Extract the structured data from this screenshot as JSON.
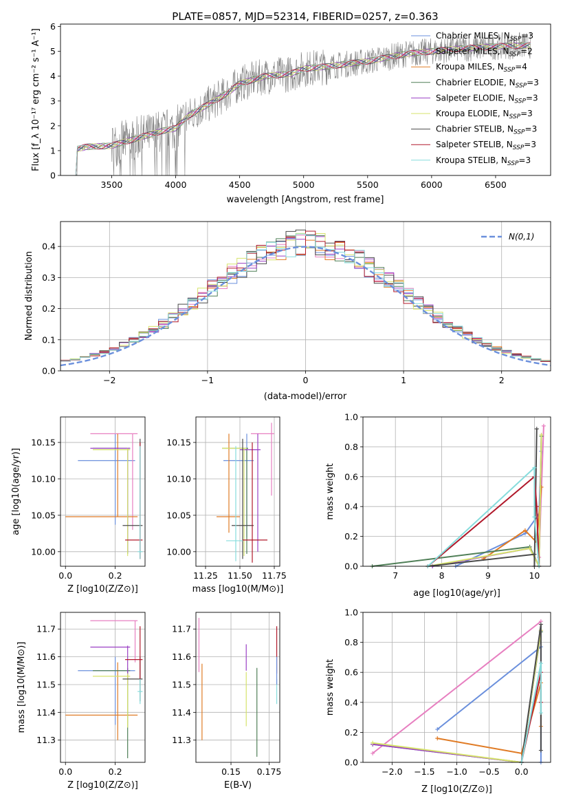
{
  "colors": {
    "c_miles": "#6a8fdc",
    "s_miles": "#e77fc0",
    "k_miles": "#e07b25",
    "c_elodie": "#4f7f57",
    "s_elodie": "#9a3fc4",
    "k_elodie": "#d6e36a",
    "c_stelib": "#4a4a4a",
    "s_stelib": "#b0182a",
    "k_stelib": "#86dcdc",
    "data": "#808080",
    "normal": "#6a8fdc"
  },
  "chart_data": [
    {
      "type": "line",
      "title": "PLATE=0857, MJD=52314, FIBERID=0257, z=0.363",
      "xlabel": "wavelength [Angstrom, rest frame]",
      "ylabel": "Flux [f_λ 10⁻¹⁷ erg cm⁻² s⁻¹ A⁻¹]",
      "xlim": [
        3100,
        6930
      ],
      "ylim": [
        0,
        6.1
      ],
      "xticks": [
        3500,
        4000,
        4500,
        5000,
        5500,
        6000,
        6500
      ],
      "yticks": [
        0,
        1,
        2,
        3,
        4,
        5,
        6
      ],
      "legend_position": "top-right",
      "series": [
        {
          "name": "Chabrier MILES, N_SSP=3",
          "key": "c_miles",
          "n": "3",
          "lib": "Chabrier MILES"
        },
        {
          "name": "Salpeter MILES, N_SSP=2",
          "key": "s_miles",
          "n": "2",
          "lib": "Salpeter MILES"
        },
        {
          "name": "Kroupa MILES, N_SSP=4",
          "key": "k_miles",
          "n": "4",
          "lib": "Kroupa MILES"
        },
        {
          "name": "Chabrier ELODIE, N_SSP=3",
          "key": "c_elodie",
          "n": "3",
          "lib": "Chabrier ELODIE"
        },
        {
          "name": "Salpeter ELODIE, N_SSP=3",
          "key": "s_elodie",
          "n": "3",
          "lib": "Salpeter ELODIE"
        },
        {
          "name": "Kroupa ELODIE, N_SSP=3",
          "key": "k_elodie",
          "n": "3",
          "lib": "Kroupa ELODIE"
        },
        {
          "name": "Chabrier STELIB, N_SSP=3",
          "key": "c_stelib",
          "n": "3",
          "lib": "Chabrier STELIB"
        },
        {
          "name": "Salpeter STELIB, N_SSP=3",
          "key": "s_stelib",
          "n": "3",
          "lib": "Salpeter STELIB"
        },
        {
          "name": "Kroupa STELIB, N_SSP=3",
          "key": "k_stelib",
          "n": "3",
          "lib": "Kroupa STELIB"
        }
      ],
      "continuum": {
        "x": [
          3220,
          3300,
          3500,
          3700,
          3900,
          4000,
          4100,
          4200,
          4300,
          4400,
          4500,
          4700,
          4900,
          5000,
          5200,
          5500,
          5800,
          6000,
          6200,
          6500,
          6800
        ],
        "y": [
          1.05,
          1.15,
          1.2,
          1.5,
          1.8,
          1.9,
          2.4,
          2.7,
          3.0,
          3.3,
          3.7,
          4.0,
          4.1,
          4.3,
          4.4,
          4.6,
          4.9,
          5.0,
          5.1,
          5.2,
          5.25
        ]
      }
    },
    {
      "type": "histogram",
      "xlabel": "(data-model)/error",
      "ylabel": "Normed distribution",
      "xlim": [
        -2.5,
        2.5
      ],
      "ylim": [
        0,
        0.48
      ],
      "xticks": [
        -2,
        -1,
        0,
        1,
        2
      ],
      "yticks": [
        0.0,
        0.1,
        0.2,
        0.3,
        0.4
      ],
      "grid": true,
      "legend_position": "top-right",
      "legend_label": "N(0,1)",
      "bin_width": 0.1,
      "overlay": {
        "name": "N(0,1)",
        "type": "normal-pdf",
        "mean": 0,
        "sd": 1
      }
    },
    {
      "type": "scatter-errorbars",
      "xlabel": "Z [log10(Z/Z⊙)]",
      "ylabel": "age [log10(age/yr)]",
      "xlim": [
        -0.02,
        0.32
      ],
      "ylim": [
        9.98,
        10.185
      ],
      "xticks": [
        0.0,
        0.2
      ],
      "yticks": [
        10.0,
        10.05,
        10.1,
        10.15
      ],
      "grid": true,
      "points": [
        {
          "key": "c_miles",
          "x": 0.2,
          "y": 10.125,
          "xlo": 0.05,
          "xhi": 0.28,
          "ylo": 10.037,
          "yhi": 10.162
        },
        {
          "key": "s_miles",
          "x": 0.27,
          "y": 10.162,
          "xlo": 0.1,
          "xhi": 0.29,
          "ylo": 10.03,
          "yhi": 10.162
        },
        {
          "key": "k_miles",
          "x": 0.21,
          "y": 10.048,
          "xlo": 0.0,
          "xhi": 0.29,
          "ylo": 10.048,
          "yhi": 10.162
        },
        {
          "key": "c_elodie",
          "x": 0.25,
          "y": 10.142,
          "xlo": 0.11,
          "xhi": 0.26,
          "ylo": 9.997,
          "yhi": 10.142
        },
        {
          "key": "s_elodie",
          "x": 0.25,
          "y": 10.142,
          "xlo": 0.1,
          "xhi": 0.26,
          "ylo": 10.0,
          "yhi": 10.142
        },
        {
          "key": "k_elodie",
          "x": 0.25,
          "y": 10.14,
          "xlo": 0.11,
          "xhi": 0.26,
          "ylo": 9.994,
          "yhi": 10.142
        },
        {
          "key": "c_stelib",
          "x": 0.3,
          "y": 10.036,
          "xlo": 0.23,
          "xhi": 0.31,
          "ylo": 9.99,
          "yhi": 10.155
        },
        {
          "key": "s_stelib",
          "x": 0.3,
          "y": 10.016,
          "xlo": 0.24,
          "xhi": 0.31,
          "ylo": 9.99,
          "yhi": 10.15
        },
        {
          "key": "k_stelib",
          "x": 0.3,
          "y": 10.0,
          "xlo": 0.29,
          "xhi": 0.31,
          "ylo": 9.99,
          "yhi": 10.145
        }
      ]
    },
    {
      "type": "scatter-errorbars",
      "xlabel": "mass [log10(M/M⊙)]",
      "ylabel": "",
      "xlim": [
        11.18,
        11.79
      ],
      "ylim": [
        9.98,
        10.185
      ],
      "xticks": [
        11.25,
        11.5,
        11.75
      ],
      "yticks": [
        10.0,
        10.05,
        10.1,
        10.15
      ],
      "grid": true,
      "points": [
        {
          "key": "c_miles",
          "x": 11.55,
          "y": 10.125,
          "xlo": 11.38,
          "xhi": 11.6,
          "ylo": 10.02,
          "yhi": 10.162
        },
        {
          "key": "s_miles",
          "x": 11.73,
          "y": 10.162,
          "xlo": 11.58,
          "xhi": 11.75,
          "ylo": 10.077,
          "yhi": 10.177
        },
        {
          "key": "k_miles",
          "x": 11.42,
          "y": 10.048,
          "xlo": 11.33,
          "xhi": 11.5,
          "ylo": 10.026,
          "yhi": 10.162
        },
        {
          "key": "c_elodie",
          "x": 11.55,
          "y": 10.142,
          "xlo": 11.37,
          "xhi": 11.56,
          "ylo": 9.997,
          "yhi": 10.142
        },
        {
          "key": "s_elodie",
          "x": 11.63,
          "y": 10.14,
          "xlo": 11.5,
          "xhi": 11.65,
          "ylo": 10.0,
          "yhi": 10.162
        },
        {
          "key": "k_elodie",
          "x": 11.53,
          "y": 10.142,
          "xlo": 11.37,
          "xhi": 11.55,
          "ylo": 9.994,
          "yhi": 10.142
        },
        {
          "key": "c_stelib",
          "x": 11.52,
          "y": 10.036,
          "xlo": 11.44,
          "xhi": 11.6,
          "ylo": 9.99,
          "yhi": 10.155
        },
        {
          "key": "s_stelib",
          "x": 11.59,
          "y": 10.016,
          "xlo": 11.52,
          "xhi": 11.7,
          "ylo": 9.985,
          "yhi": 10.15
        },
        {
          "key": "k_stelib",
          "x": 11.47,
          "y": 10.015,
          "xlo": 11.4,
          "xhi": 11.52,
          "ylo": 9.987,
          "yhi": 10.145
        }
      ]
    },
    {
      "type": "line",
      "xlabel": "age  [log10(age/yr)]",
      "ylabel": "mass weight",
      "xlim": [
        6.3,
        10.35
      ],
      "ylim": [
        0,
        1.0
      ],
      "xticks": [
        7,
        8,
        9,
        10
      ],
      "yticks": [
        0.0,
        0.2,
        0.4,
        0.6,
        0.8,
        1.0
      ],
      "grid": true,
      "series": [
        {
          "key": "c_miles",
          "x": [
            8.3,
            9.8,
            10.1,
            10.15
          ],
          "y": [
            0.0,
            0.22,
            0.35,
            0.77
          ]
        },
        {
          "key": "s_miles",
          "x": [
            10.1,
            10.2
          ],
          "y": [
            0.06,
            0.94
          ]
        },
        {
          "key": "k_miles",
          "x": [
            8.9,
            9.8,
            10.05,
            10.15
          ],
          "y": [
            0.05,
            0.24,
            0.16,
            0.53
          ]
        },
        {
          "key": "c_elodie",
          "x": [
            6.5,
            9.9,
            10.1,
            10.15
          ],
          "y": [
            0.0,
            0.13,
            0.0,
            0.87
          ]
        },
        {
          "key": "s_elodie",
          "x": [
            7.8,
            9.9,
            10.1,
            10.15
          ],
          "y": [
            0.0,
            0.12,
            0.0,
            0.88
          ]
        },
        {
          "key": "k_elodie",
          "x": [
            7.7,
            9.9,
            10.1,
            10.15
          ],
          "y": [
            0.0,
            0.12,
            0.0,
            0.88
          ]
        },
        {
          "key": "c_stelib",
          "x": [
            7.7,
            10.0,
            10.0,
            10.05
          ],
          "y": [
            0.0,
            0.08,
            0.0,
            0.92
          ]
        },
        {
          "key": "s_stelib",
          "x": [
            7.7,
            10.0,
            10.05,
            10.1
          ],
          "y": [
            0.0,
            0.6,
            0.4,
            0.0
          ]
        },
        {
          "key": "k_stelib",
          "x": [
            7.7,
            10.0,
            10.0,
            10.1
          ],
          "y": [
            0.0,
            0.66,
            0.33,
            0.0
          ]
        }
      ]
    },
    {
      "type": "scatter-errorbars",
      "xlabel": "Z [log10(Z/Z⊙)]",
      "ylabel": "mass [log10(M/M⊙)]",
      "xlim": [
        -0.02,
        0.32
      ],
      "ylim": [
        11.22,
        11.76
      ],
      "xticks": [
        0.0,
        0.2
      ],
      "yticks": [
        11.3,
        11.4,
        11.5,
        11.6,
        11.7
      ],
      "grid": true,
      "points": [
        {
          "key": "c_miles",
          "x": 0.2,
          "y": 11.55,
          "xlo": 0.05,
          "xhi": 0.28,
          "ylo": 11.355,
          "yhi": 11.6
        },
        {
          "key": "s_miles",
          "x": 0.28,
          "y": 11.73,
          "xlo": 0.1,
          "xhi": 0.29,
          "ylo": 11.58,
          "yhi": 11.73
        },
        {
          "key": "k_miles",
          "x": 0.21,
          "y": 11.39,
          "xlo": 0.0,
          "xhi": 0.29,
          "ylo": 11.3,
          "yhi": 11.58
        },
        {
          "key": "c_elodie",
          "x": 0.25,
          "y": 11.55,
          "xlo": 0.11,
          "xhi": 0.26,
          "ylo": 11.235,
          "yhi": 11.56
        },
        {
          "key": "s_elodie",
          "x": 0.25,
          "y": 11.635,
          "xlo": 0.1,
          "xhi": 0.26,
          "ylo": 11.5,
          "yhi": 11.64
        },
        {
          "key": "k_elodie",
          "x": 0.25,
          "y": 11.53,
          "xlo": 0.11,
          "xhi": 0.26,
          "ylo": 11.345,
          "yhi": 11.54
        },
        {
          "key": "c_stelib",
          "x": 0.3,
          "y": 11.52,
          "xlo": 0.23,
          "xhi": 0.31,
          "ylo": 11.44,
          "yhi": 11.6
        },
        {
          "key": "s_stelib",
          "x": 0.3,
          "y": 11.59,
          "xlo": 0.24,
          "xhi": 0.31,
          "ylo": 11.52,
          "yhi": 11.71
        },
        {
          "key": "k_stelib",
          "x": 0.3,
          "y": 11.475,
          "xlo": 0.29,
          "xhi": 0.31,
          "ylo": 11.43,
          "yhi": 11.52
        }
      ]
    },
    {
      "type": "scatter-errorbars",
      "xlabel": "E(B-V)",
      "ylabel": "",
      "xlim": [
        0.127,
        0.182
      ],
      "ylim": [
        11.22,
        11.76
      ],
      "xticks": [
        0.15,
        0.175
      ],
      "yticks": [
        11.3,
        11.4,
        11.5,
        11.6,
        11.7
      ],
      "grid": true,
      "points": [
        {
          "key": "s_miles",
          "x": 0.129,
          "y": 11.64,
          "ylo": 11.545,
          "yhi": 11.74
        },
        {
          "key": "k_miles",
          "x": 0.131,
          "y": 11.43,
          "ylo": 11.3,
          "yhi": 11.575
        },
        {
          "key": "s_elodie",
          "x": 0.16,
          "y": 11.6,
          "ylo": 11.55,
          "yhi": 11.645
        },
        {
          "key": "k_elodie",
          "x": 0.16,
          "y": 11.45,
          "ylo": 11.35,
          "yhi": 11.545
        },
        {
          "key": "c_elodie",
          "x": 0.167,
          "y": 11.4,
          "ylo": 11.24,
          "yhi": 11.56
        },
        {
          "key": "s_stelib",
          "x": 0.18,
          "y": 11.6,
          "ylo": 11.54,
          "yhi": 11.71
        },
        {
          "key": "k_stelib",
          "x": 0.18,
          "y": 11.48,
          "ylo": 11.43,
          "yhi": 11.52
        },
        {
          "key": "c_miles",
          "x": 0.18,
          "y": 11.55,
          "ylo": 11.5,
          "yhi": 11.6
        }
      ]
    },
    {
      "type": "line",
      "xlabel": "Z [log10(Z/Z⊙)]",
      "ylabel": "mass weight",
      "xlim": [
        -2.45,
        0.45
      ],
      "ylim": [
        0,
        1.0
      ],
      "xticks": [
        -2.0,
        -1.5,
        -1.0,
        -0.5,
        0.0
      ],
      "yticks": [
        0.0,
        0.2,
        0.4,
        0.6,
        0.8,
        1.0
      ],
      "grid": true,
      "series": [
        {
          "key": "c_miles",
          "x": [
            -1.3,
            0.3,
            0.3
          ],
          "y": [
            0.22,
            0.77,
            0.0
          ]
        },
        {
          "key": "s_miles",
          "x": [
            -2.3,
            0.3
          ],
          "y": [
            0.06,
            0.94
          ]
        },
        {
          "key": "k_miles",
          "x": [
            -1.3,
            0.0,
            0.3,
            0.3
          ],
          "y": [
            0.16,
            0.06,
            0.53,
            0.24
          ]
        },
        {
          "key": "c_elodie",
          "x": [
            -2.3,
            0.0,
            0.3
          ],
          "y": [
            0.12,
            0.0,
            0.87
          ]
        },
        {
          "key": "s_elodie",
          "x": [
            -2.3,
            0.0,
            0.3
          ],
          "y": [
            0.12,
            0.0,
            0.88
          ]
        },
        {
          "key": "k_elodie",
          "x": [
            -2.3,
            0.0,
            0.3
          ],
          "y": [
            0.13,
            0.0,
            0.88
          ]
        },
        {
          "key": "c_stelib",
          "x": [
            0.0,
            0.3,
            0.3
          ],
          "y": [
            0.0,
            0.92,
            0.08
          ]
        },
        {
          "key": "s_stelib",
          "x": [
            0.0,
            0.3,
            0.3
          ],
          "y": [
            0.0,
            0.6,
            0.4
          ]
        },
        {
          "key": "k_stelib",
          "x": [
            0.0,
            0.3,
            0.3
          ],
          "y": [
            0.0,
            0.66,
            0.33
          ]
        }
      ]
    }
  ]
}
